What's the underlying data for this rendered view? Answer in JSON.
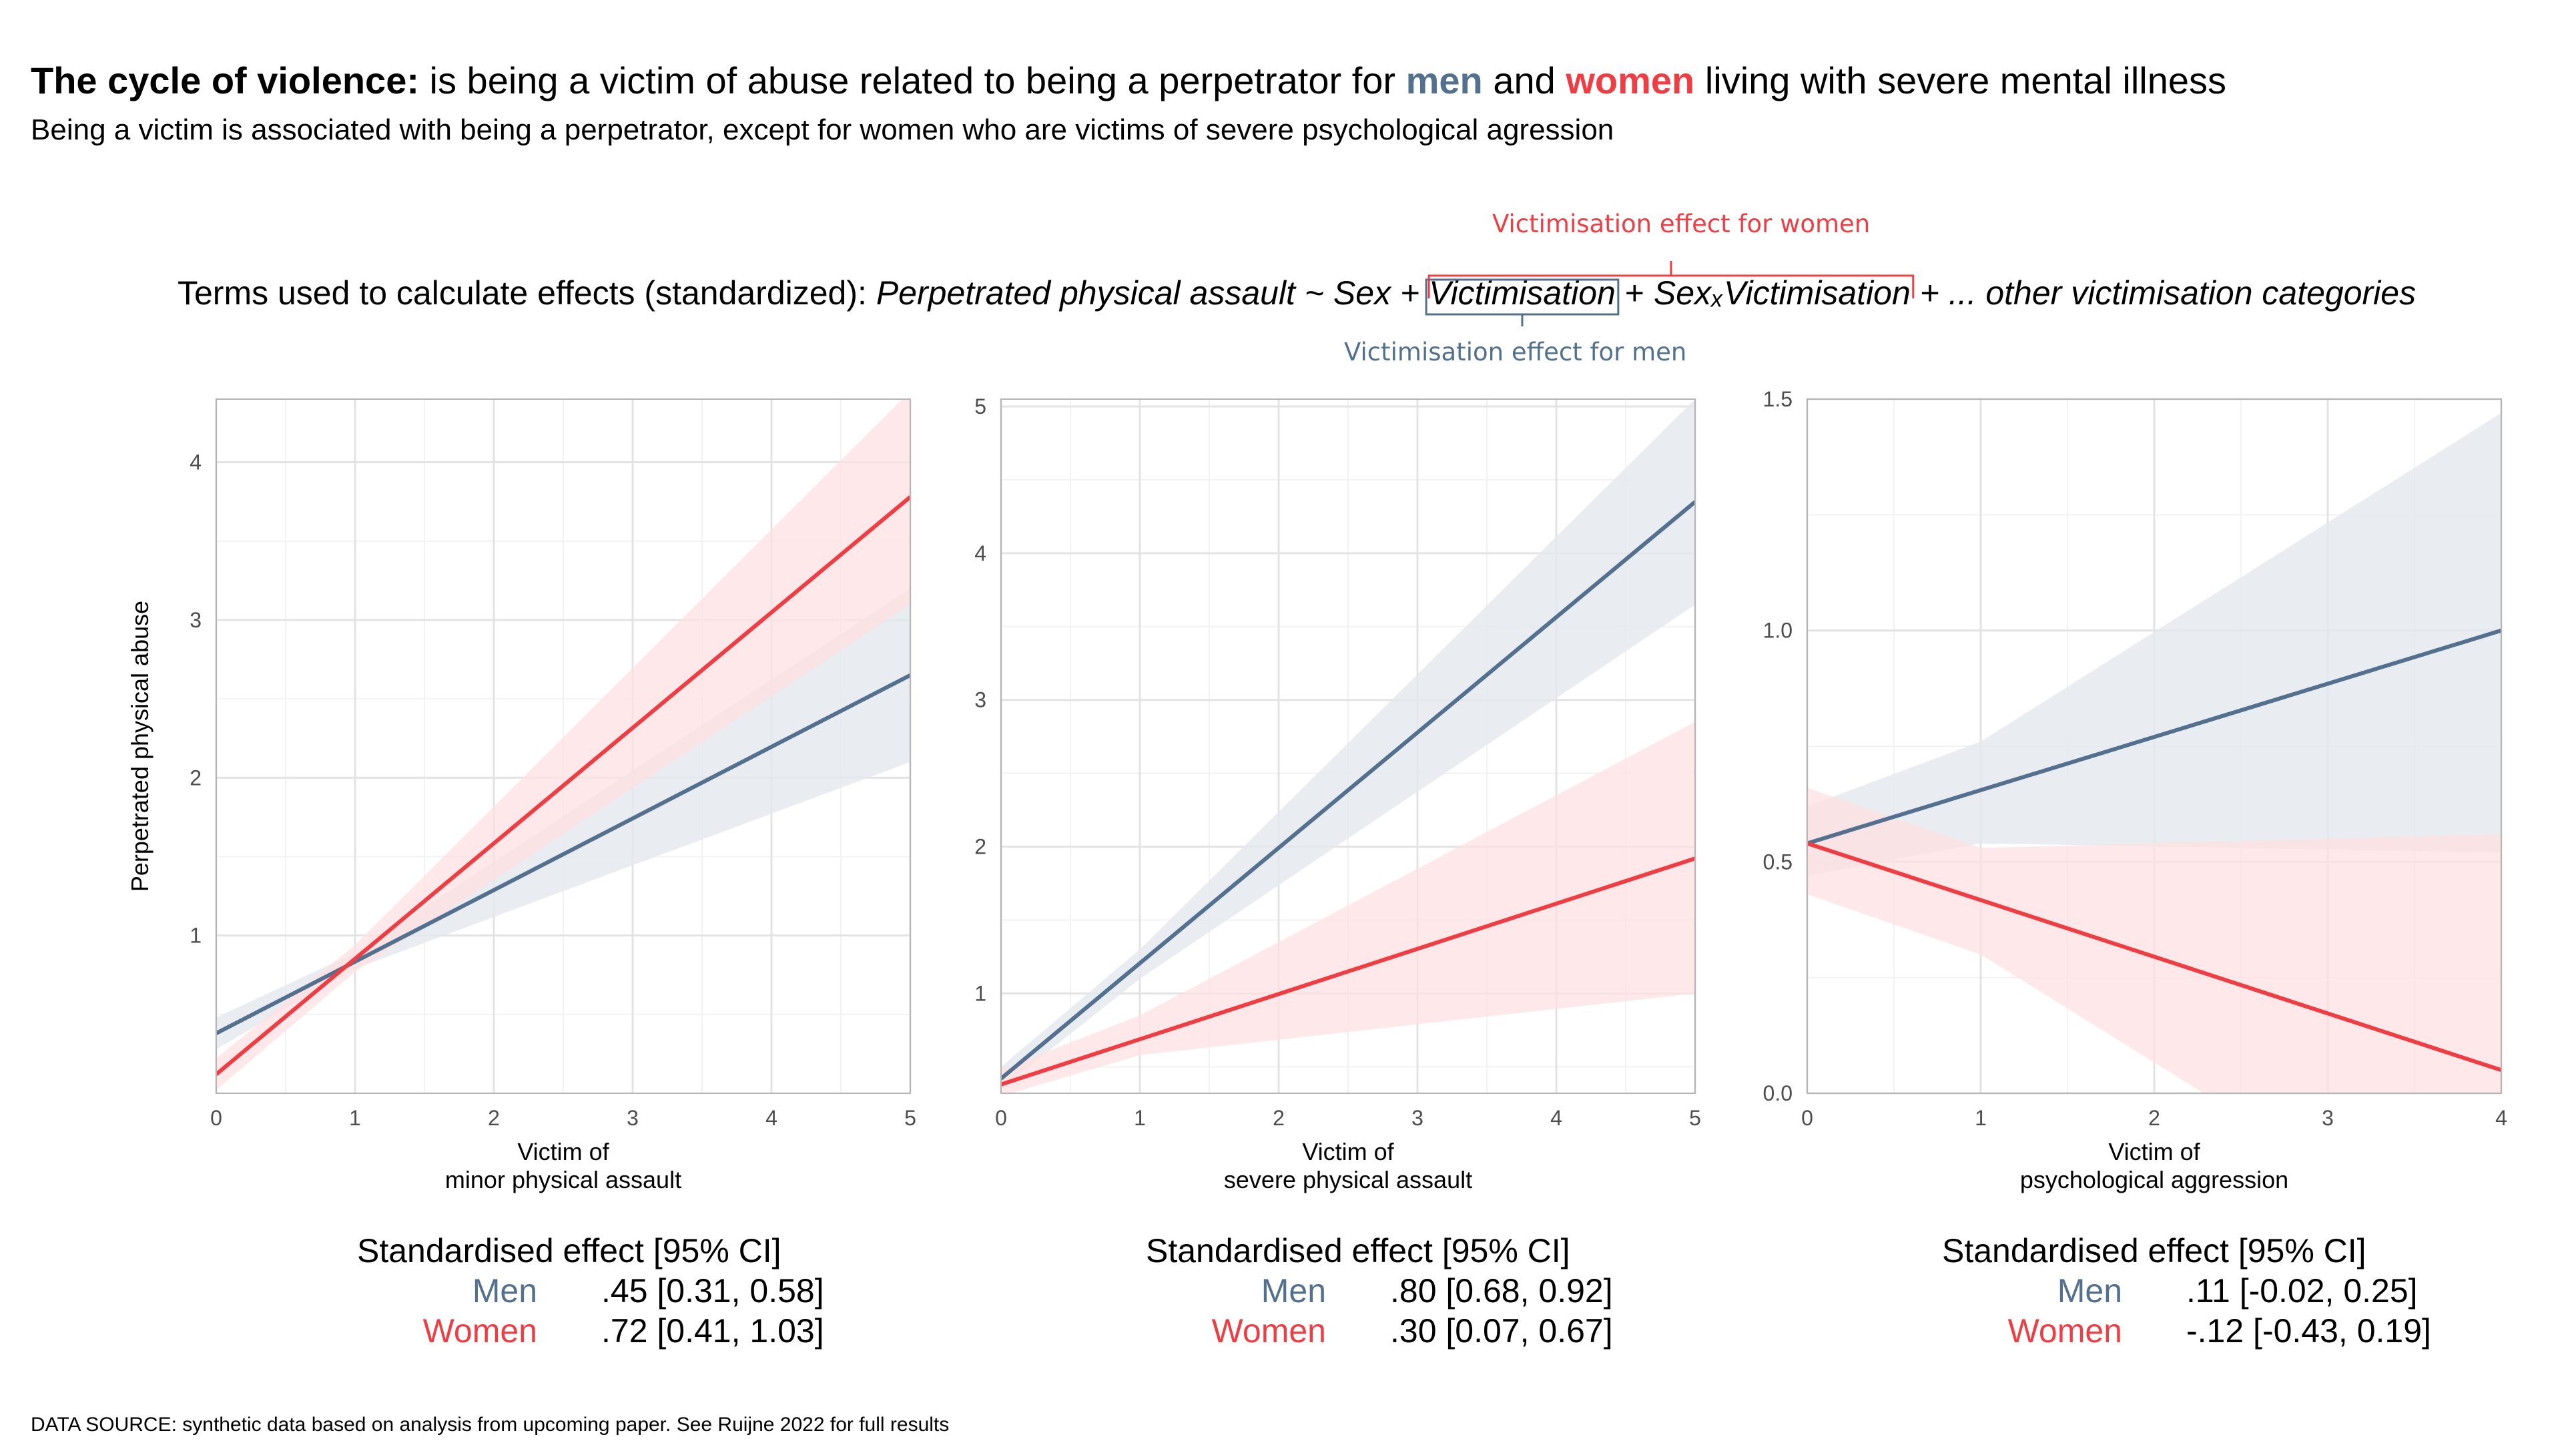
{
  "title": {
    "bold": "The  cycle  of violence:",
    "part1": "is being a victim of abuse related to being a perpetrator  for",
    "men": "men",
    "and": "and",
    "women": "women",
    "part2": "living with severe  mental illness"
  },
  "subtitle": "Being a victim is associated with being a perpetrator, except for women who are victims of severe psychological agression",
  "formula": {
    "lead": "Terms used to calculate effects (standardized):",
    "t1": "Perpetrated physical assault ~ Sex +",
    "t2": "Victimisation",
    "t3": "+",
    "t4": "SexₓVictimisation",
    "t5": "+ ... other victimisation categories"
  },
  "annotations": {
    "women": "Victimisation effect for women",
    "men": "Victimisation effect for men"
  },
  "colors": {
    "men": "#53708F",
    "women": "#EE3E44",
    "men_band": "#E4E7EC",
    "women_band": "#FDE0E1"
  },
  "chart_data": [
    {
      "type": "line",
      "ylabel": "Perpetrated physical abuse",
      "xlabel": [
        "Victim of",
        "minor physical assault"
      ],
      "xlim": [
        0,
        5
      ],
      "ylim": [
        0,
        4.4
      ],
      "xticks": [
        0,
        1,
        2,
        3,
        4,
        5
      ],
      "yticks": [
        1,
        2,
        3,
        4
      ],
      "series": [
        {
          "name": "Men",
          "x": [
            0,
            5
          ],
          "y": [
            0.38,
            2.65
          ],
          "ci_lower": [
            0.28,
            2.1
          ],
          "ci_upper": [
            0.48,
            3.2
          ],
          "ci_mid_x": 1,
          "ci_mid": [
            0.79,
            0.89
          ]
        },
        {
          "name": "Women",
          "x": [
            0,
            5
          ],
          "y": [
            0.12,
            3.78
          ],
          "ci_lower": [
            0.02,
            3.1
          ],
          "ci_upper": [
            0.22,
            4.45
          ],
          "ci_mid_x": 1,
          "ci_mid": [
            0.77,
            0.94
          ]
        }
      ],
      "effects": {
        "header": "Standardised effect [95% CI]",
        "men_label": "Men",
        "men_value": ".45 [0.31, 0.58]",
        "women_label": "Women",
        "women_value": ".72 [0.41, 1.03]"
      }
    },
    {
      "type": "line",
      "ylabel": "",
      "xlabel": [
        "Victim of",
        "severe physical assault"
      ],
      "xlim": [
        0,
        5
      ],
      "ylim": [
        0.32,
        5.05
      ],
      "xticks": [
        0,
        1,
        2,
        3,
        4,
        5
      ],
      "yticks": [
        1,
        2,
        3,
        4,
        5
      ],
      "series": [
        {
          "name": "Men",
          "x": [
            0,
            5
          ],
          "y": [
            0.42,
            4.35
          ],
          "ci_lower": [
            0.35,
            3.65
          ],
          "ci_upper": [
            0.5,
            5.05
          ],
          "ci_mid_x": 1,
          "ci_mid": [
            1.1,
            1.3
          ]
        },
        {
          "name": "Women",
          "x": [
            0,
            5
          ],
          "y": [
            0.38,
            1.92
          ],
          "ci_lower": [
            0.3,
            1.0
          ],
          "ci_upper": [
            0.48,
            2.85
          ],
          "ci_mid_x": 1,
          "ci_mid": [
            0.58,
            0.85
          ]
        }
      ],
      "effects": {
        "header": "Standardised effect [95% CI]",
        "men_label": "Men",
        "men_value": ".80 [0.68, 0.92]",
        "women_label": "Women",
        "women_value": ".30 [0.07, 0.67]"
      }
    },
    {
      "type": "line",
      "ylabel": "",
      "xlabel": [
        "Victim of",
        "psychological aggression"
      ],
      "xlim": [
        0,
        4
      ],
      "ylim": [
        0,
        1.5
      ],
      "xticks": [
        0,
        1,
        2,
        3,
        4
      ],
      "yticks": [
        0.0,
        0.5,
        1.0,
        1.5
      ],
      "series": [
        {
          "name": "Men",
          "x": [
            0,
            4
          ],
          "y": [
            0.54,
            1.0
          ],
          "ci_lower": [
            0.47,
            0.52
          ],
          "ci_upper": [
            0.62,
            1.47
          ],
          "ci_mid_x": 1,
          "ci_mid": [
            0.54,
            0.76
          ]
        },
        {
          "name": "Women",
          "x": [
            0,
            4
          ],
          "y": [
            0.54,
            0.05
          ],
          "ci_lower": [
            0.43,
            -0.4
          ],
          "ci_upper": [
            0.66,
            0.56
          ],
          "ci_mid_x": 1,
          "ci_mid": [
            0.3,
            0.53
          ]
        }
      ],
      "effects": {
        "header": "Standardised effect [95% CI]",
        "men_label": "Men",
        "men_value": ".11 [-0.02, 0.25]",
        "women_label": "Women",
        "women_value": "-.12 [-0.43, 0.19]"
      }
    }
  ],
  "source": "DATA SOURCE: synthetic data based on analysis from upcoming paper. See Ruijne 2022 for full results"
}
